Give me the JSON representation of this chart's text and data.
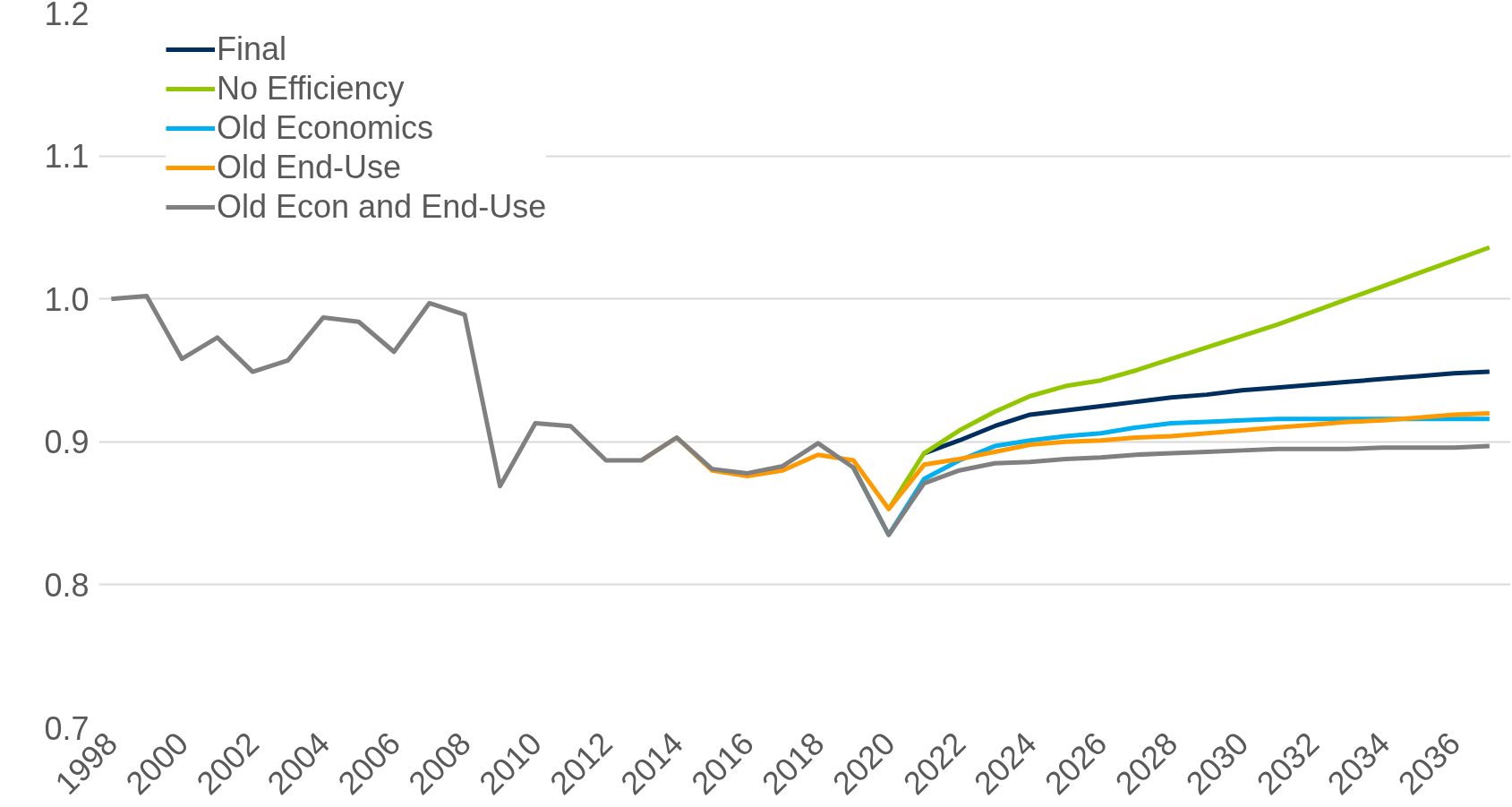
{
  "chart_data": {
    "type": "line",
    "x": [
      1998,
      1999,
      2000,
      2001,
      2002,
      2003,
      2004,
      2005,
      2006,
      2007,
      2008,
      2009,
      2010,
      2011,
      2012,
      2013,
      2014,
      2015,
      2016,
      2017,
      2018,
      2019,
      2020,
      2021,
      2022,
      2023,
      2024,
      2025,
      2026,
      2027,
      2028,
      2029,
      2030,
      2031,
      2032,
      2033,
      2034,
      2035,
      2036,
      2037
    ],
    "series": [
      {
        "name": "Final",
        "color": "#002f5f",
        "values": [
          null,
          null,
          null,
          null,
          null,
          null,
          null,
          null,
          null,
          null,
          null,
          null,
          null,
          null,
          null,
          null,
          null,
          null,
          null,
          null,
          null,
          null,
          null,
          0.892,
          0.901,
          0.911,
          0.919,
          0.922,
          0.925,
          0.928,
          0.931,
          0.933,
          0.936,
          0.938,
          0.94,
          0.942,
          0.944,
          0.946,
          0.948,
          0.949
        ]
      },
      {
        "name": "No Efficiency",
        "color": "#92c700",
        "values": [
          null,
          null,
          null,
          null,
          null,
          null,
          null,
          null,
          null,
          null,
          null,
          null,
          null,
          null,
          null,
          null,
          null,
          null,
          null,
          null,
          null,
          null,
          0.853,
          0.892,
          0.908,
          0.921,
          0.932,
          0.939,
          0.943,
          0.95,
          0.958,
          0.966,
          0.974,
          0.982,
          0.991,
          1.0,
          1.009,
          1.018,
          1.027,
          1.036
        ]
      },
      {
        "name": "Old Economics",
        "color": "#00b0f0",
        "values": [
          null,
          null,
          null,
          null,
          null,
          null,
          null,
          null,
          null,
          null,
          null,
          null,
          null,
          null,
          null,
          null,
          null,
          null,
          null,
          null,
          null,
          0.882,
          0.835,
          0.874,
          0.887,
          0.897,
          0.901,
          0.904,
          0.906,
          0.91,
          0.913,
          0.914,
          0.915,
          0.916,
          0.916,
          0.916,
          0.916,
          0.916,
          0.916,
          0.916
        ]
      },
      {
        "name": "Old End-Use",
        "color": "#ff9900",
        "values": [
          null,
          null,
          null,
          null,
          null,
          null,
          null,
          null,
          null,
          null,
          null,
          null,
          null,
          null,
          null,
          0.887,
          0.903,
          0.88,
          0.876,
          0.88,
          0.891,
          0.887,
          0.853,
          0.884,
          0.888,
          0.893,
          0.898,
          0.9,
          0.901,
          0.903,
          0.904,
          0.906,
          0.908,
          0.91,
          0.912,
          0.914,
          0.915,
          0.917,
          0.919,
          0.92
        ]
      },
      {
        "name": "Old Econ and End-Use",
        "color": "#808080",
        "values": [
          1.0,
          1.002,
          0.958,
          0.973,
          0.949,
          0.957,
          0.987,
          0.984,
          0.963,
          0.997,
          0.989,
          0.869,
          0.913,
          0.911,
          0.887,
          0.887,
          0.903,
          0.881,
          0.878,
          0.883,
          0.899,
          0.882,
          0.835,
          0.871,
          0.88,
          0.885,
          0.886,
          0.888,
          0.889,
          0.891,
          0.892,
          0.893,
          0.894,
          0.895,
          0.895,
          0.895,
          0.896,
          0.896,
          0.896,
          0.897
        ]
      }
    ],
    "xlim": [
      1997.65,
      2037.6
    ],
    "xticks": [
      1998,
      2000,
      2002,
      2004,
      2006,
      2008,
      2010,
      2012,
      2014,
      2016,
      2018,
      2020,
      2022,
      2024,
      2026,
      2028,
      2030,
      2032,
      2034,
      2036
    ],
    "ylim": [
      0.7,
      1.2
    ],
    "yticks": [
      {
        "value": 0.7,
        "label": "0.7"
      },
      {
        "value": 0.8,
        "label": "0.8"
      },
      {
        "value": 0.9,
        "label": "0.9"
      },
      {
        "value": 1.0,
        "label": "1.0"
      },
      {
        "value": 1.1,
        "label": "1.1"
      },
      {
        "value": 1.2,
        "label": "1.2"
      }
    ],
    "grid": "y",
    "legend": "top left",
    "marker": "none",
    "line_style": "solid"
  }
}
